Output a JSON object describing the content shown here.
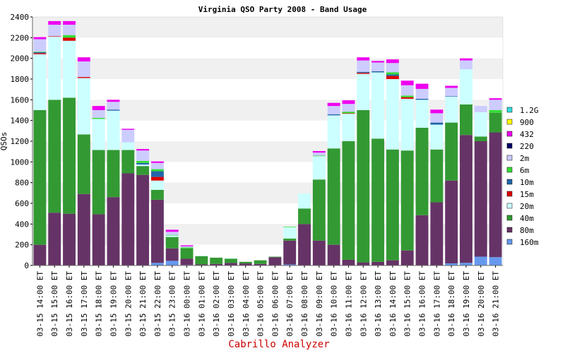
{
  "chart_data": {
    "type": "bar",
    "stacked": true,
    "title": "Virginia QSO Party 2008 - Band Usage",
    "ylabel": "QSOs",
    "xlabel": "",
    "ylim": [
      0,
      2400
    ],
    "yticks": [
      0,
      200,
      400,
      600,
      800,
      1000,
      1200,
      1400,
      1600,
      1800,
      2000,
      2200,
      2400
    ],
    "grid": "horizontal alternating bands",
    "legend_position": "right",
    "categories": [
      "03-15 14:00 ET",
      "03-15 15:00 ET",
      "03-15 16:00 ET",
      "03-15 17:00 ET",
      "03-15 18:00 ET",
      "03-15 19:00 ET",
      "03-15 20:00 ET",
      "03-15 21:00 ET",
      "03-15 22:00 ET",
      "03-15 23:00 ET",
      "03-16 00:00 ET",
      "03-16 01:00 ET",
      "03-16 02:00 ET",
      "03-16 03:00 ET",
      "03-16 04:00 ET",
      "03-16 05:00 ET",
      "03-16 06:00 ET",
      "03-16 07:00 ET",
      "03-16 08:00 ET",
      "03-16 09:00 ET",
      "03-16 10:00 ET",
      "03-16 11:00 ET",
      "03-16 12:00 ET",
      "03-16 13:00 ET",
      "03-16 14:00 ET",
      "03-16 15:00 ET",
      "03-16 16:00 ET",
      "03-16 17:00 ET",
      "03-16 18:00 ET",
      "03-16 19:00 ET",
      "03-16 20:00 ET",
      "03-16 21:00 ET"
    ],
    "series": [
      {
        "name": "160m",
        "color": "#6699ee",
        "values": [
          0,
          0,
          0,
          0,
          0,
          0,
          0,
          0,
          25,
          45,
          5,
          0,
          0,
          0,
          0,
          0,
          0,
          10,
          0,
          0,
          0,
          0,
          0,
          0,
          0,
          0,
          0,
          0,
          20,
          25,
          85,
          80
        ]
      },
      {
        "name": "80m",
        "color": "#663366",
        "values": [
          200,
          510,
          500,
          690,
          495,
          660,
          890,
          875,
          610,
          120,
          60,
          10,
          15,
          25,
          20,
          15,
          80,
          230,
          400,
          240,
          200,
          55,
          30,
          35,
          50,
          145,
          485,
          610,
          800,
          1235,
          1115,
          1205
        ]
      },
      {
        "name": "40m",
        "color": "#339933",
        "values": [
          1300,
          1090,
          1120,
          575,
          620,
          455,
          225,
          85,
          95,
          110,
          100,
          80,
          60,
          40,
          15,
          35,
          5,
          20,
          150,
          590,
          930,
          1145,
          1470,
          1190,
          1070,
          965,
          845,
          510,
          560,
          295,
          45,
          190
        ]
      },
      {
        "name": "20m",
        "color": "#ccffff",
        "values": [
          540,
          610,
          550,
          545,
          300,
          380,
          75,
          15,
          90,
          15,
          0,
          5,
          0,
          5,
          0,
          0,
          0,
          110,
          145,
          225,
          320,
          265,
          350,
          640,
          680,
          500,
          270,
          240,
          250,
          340,
          235,
          0
        ]
      },
      {
        "name": "15m",
        "color": "#dd0000",
        "values": [
          10,
          5,
          30,
          10,
          0,
          0,
          0,
          0,
          35,
          0,
          0,
          0,
          0,
          0,
          0,
          0,
          0,
          0,
          0,
          0,
          0,
          5,
          10,
          0,
          30,
          15,
          0,
          0,
          0,
          0,
          0,
          0
        ]
      },
      {
        "name": "10m",
        "color": "#2266aa",
        "values": [
          10,
          0,
          0,
          0,
          0,
          10,
          0,
          15,
          55,
          0,
          0,
          0,
          0,
          0,
          0,
          0,
          0,
          0,
          0,
          0,
          10,
          0,
          10,
          10,
          15,
          0,
          10,
          20,
          5,
          0,
          0,
          0
        ]
      },
      {
        "name": "6m",
        "color": "#33dd33",
        "values": [
          5,
          0,
          25,
          0,
          10,
          0,
          0,
          20,
          20,
          5,
          10,
          0,
          0,
          0,
          0,
          0,
          0,
          5,
          0,
          5,
          0,
          15,
          0,
          0,
          20,
          15,
          0,
          0,
          0,
          0,
          0,
          25
        ]
      },
      {
        "name": "2m",
        "color": "#ccccff",
        "values": [
          120,
          110,
          100,
          150,
          75,
          75,
          120,
          100,
          60,
          30,
          10,
          0,
          0,
          0,
          0,
          0,
          0,
          0,
          0,
          30,
          80,
          75,
          110,
          85,
          90,
          100,
          95,
          90,
          80,
          85,
          60,
          100
        ]
      },
      {
        "name": "220",
        "color": "#000066",
        "values": [
          0,
          0,
          0,
          0,
          0,
          0,
          0,
          0,
          0,
          0,
          0,
          0,
          0,
          0,
          0,
          0,
          0,
          0,
          0,
          0,
          0,
          0,
          0,
          0,
          0,
          0,
          0,
          0,
          0,
          0,
          0,
          0
        ]
      },
      {
        "name": "432",
        "color": "#ee00ee",
        "values": [
          20,
          35,
          35,
          40,
          40,
          20,
          10,
          15,
          15,
          20,
          10,
          0,
          0,
          0,
          0,
          0,
          0,
          0,
          0,
          15,
          30,
          35,
          30,
          15,
          35,
          45,
          50,
          35,
          20,
          20,
          0,
          15
        ]
      },
      {
        "name": "900",
        "color": "#ffff00",
        "values": [
          0,
          0,
          0,
          0,
          0,
          0,
          0,
          0,
          0,
          0,
          0,
          0,
          0,
          0,
          0,
          0,
          0,
          0,
          0,
          0,
          0,
          0,
          0,
          0,
          0,
          0,
          0,
          0,
          0,
          0,
          0,
          0
        ]
      },
      {
        "name": "1.2G",
        "color": "#33dddd",
        "values": [
          0,
          0,
          0,
          0,
          0,
          0,
          0,
          0,
          0,
          0,
          0,
          0,
          0,
          0,
          0,
          0,
          0,
          0,
          0,
          0,
          0,
          0,
          0,
          0,
          0,
          0,
          0,
          0,
          0,
          0,
          0,
          0
        ]
      }
    ]
  },
  "legend_order": [
    "1.2G",
    "900",
    "432",
    "220",
    "2m",
    "6m",
    "10m",
    "15m",
    "20m",
    "40m",
    "80m",
    "160m"
  ],
  "footer": {
    "credit": "Cabrillo Analyzer"
  }
}
